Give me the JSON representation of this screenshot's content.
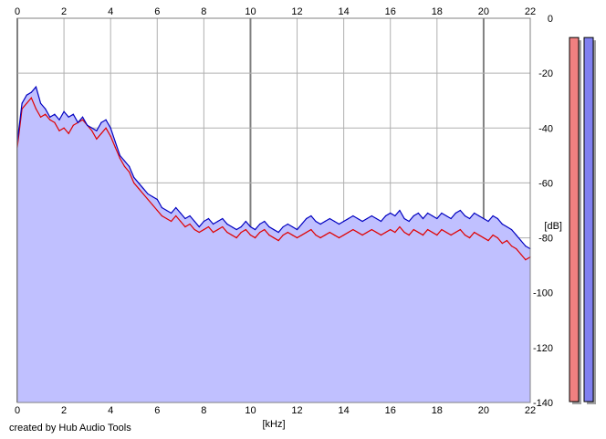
{
  "footer": {
    "credit": "created by Hub Audio Tools"
  },
  "chart_data": {
    "type": "line",
    "title": "",
    "xlabel": "[kHz]",
    "ylabel": "[dB]",
    "xlim": [
      0,
      22
    ],
    "ylim": [
      -140,
      0
    ],
    "x_ticks": [
      0,
      2,
      4,
      6,
      8,
      10,
      12,
      14,
      16,
      18,
      20,
      22
    ],
    "y_ticks": [
      0,
      -20,
      -40,
      -60,
      -80,
      -100,
      -120,
      -140
    ],
    "grid": true,
    "legend": "none",
    "series": [
      {
        "color": "#e00000",
        "x": [
          0.0,
          0.2,
          0.4,
          0.6,
          0.8,
          1.0,
          1.2,
          1.4,
          1.6,
          1.8,
          2.0,
          2.2,
          2.4,
          2.6,
          2.8,
          3.0,
          3.2,
          3.4,
          3.6,
          3.8,
          4.0,
          4.2,
          4.4,
          4.6,
          4.8,
          5.0,
          5.2,
          5.4,
          5.6,
          5.8,
          6.0,
          6.2,
          6.4,
          6.6,
          6.8,
          7.0,
          7.2,
          7.4,
          7.6,
          7.8,
          8.0,
          8.2,
          8.4,
          8.6,
          8.8,
          9.0,
          9.2,
          9.4,
          9.6,
          9.8,
          10.0,
          10.2,
          10.4,
          10.6,
          10.8,
          11.0,
          11.2,
          11.4,
          11.6,
          11.8,
          12.0,
          12.2,
          12.4,
          12.6,
          12.8,
          13.0,
          13.2,
          13.4,
          13.6,
          13.8,
          14.0,
          14.2,
          14.4,
          14.6,
          14.8,
          15.0,
          15.2,
          15.4,
          15.6,
          15.8,
          16.0,
          16.2,
          16.4,
          16.6,
          16.8,
          17.0,
          17.2,
          17.4,
          17.6,
          17.8,
          18.0,
          18.2,
          18.4,
          18.6,
          18.8,
          19.0,
          19.2,
          19.4,
          19.6,
          19.8,
          20.0,
          20.2,
          20.4,
          20.6,
          20.8,
          21.0,
          21.2,
          21.4,
          21.6,
          21.8,
          22.0
        ],
        "values": [
          -47,
          -33,
          -31,
          -29,
          -33,
          -36,
          -35,
          -37,
          -38,
          -41,
          -40,
          -42,
          -39,
          -38,
          -37,
          -39,
          -41,
          -44,
          -42,
          -40,
          -43,
          -47,
          -51,
          -54,
          -56,
          -60,
          -62,
          -64,
          -66,
          -68,
          -70,
          -72,
          -73,
          -74,
          -72,
          -74,
          -76,
          -75,
          -77,
          -78,
          -77,
          -76,
          -78,
          -77,
          -76,
          -78,
          -79,
          -80,
          -78,
          -77,
          -79,
          -80,
          -78,
          -77,
          -79,
          -80,
          -81,
          -79,
          -78,
          -79,
          -80,
          -79,
          -78,
          -77,
          -79,
          -80,
          -79,
          -78,
          -79,
          -80,
          -79,
          -78,
          -77,
          -78,
          -79,
          -78,
          -77,
          -78,
          -79,
          -78,
          -77,
          -78,
          -76,
          -78,
          -79,
          -77,
          -78,
          -79,
          -77,
          -78,
          -79,
          -77,
          -78,
          -79,
          -78,
          -77,
          -79,
          -80,
          -78,
          -79,
          -80,
          -81,
          -79,
          -80,
          -82,
          -81,
          -83,
          -84,
          -86,
          -88,
          -87
        ]
      },
      {
        "color": "#0000c0",
        "x": [
          0.0,
          0.2,
          0.4,
          0.6,
          0.8,
          1.0,
          1.2,
          1.4,
          1.6,
          1.8,
          2.0,
          2.2,
          2.4,
          2.6,
          2.8,
          3.0,
          3.2,
          3.4,
          3.6,
          3.8,
          4.0,
          4.2,
          4.4,
          4.6,
          4.8,
          5.0,
          5.2,
          5.4,
          5.6,
          5.8,
          6.0,
          6.2,
          6.4,
          6.6,
          6.8,
          7.0,
          7.2,
          7.4,
          7.6,
          7.8,
          8.0,
          8.2,
          8.4,
          8.6,
          8.8,
          9.0,
          9.2,
          9.4,
          9.6,
          9.8,
          10.0,
          10.2,
          10.4,
          10.6,
          10.8,
          11.0,
          11.2,
          11.4,
          11.6,
          11.8,
          12.0,
          12.2,
          12.4,
          12.6,
          12.8,
          13.0,
          13.2,
          13.4,
          13.6,
          13.8,
          14.0,
          14.2,
          14.4,
          14.6,
          14.8,
          15.0,
          15.2,
          15.4,
          15.6,
          15.8,
          16.0,
          16.2,
          16.4,
          16.6,
          16.8,
          17.0,
          17.2,
          17.4,
          17.6,
          17.8,
          18.0,
          18.2,
          18.4,
          18.6,
          18.8,
          19.0,
          19.2,
          19.4,
          19.6,
          19.8,
          20.0,
          20.2,
          20.4,
          20.6,
          20.8,
          21.0,
          21.2,
          21.4,
          21.6,
          21.8,
          22.0
        ],
        "values": [
          -45,
          -31,
          -28,
          -27,
          -25,
          -31,
          -33,
          -36,
          -35,
          -37,
          -34,
          -36,
          -35,
          -38,
          -36,
          -39,
          -40,
          -41,
          -38,
          -37,
          -40,
          -45,
          -50,
          -52,
          -54,
          -58,
          -60,
          -62,
          -64,
          -65,
          -66,
          -69,
          -70,
          -71,
          -69,
          -71,
          -73,
          -72,
          -74,
          -76,
          -74,
          -73,
          -75,
          -74,
          -73,
          -75,
          -76,
          -77,
          -76,
          -74,
          -76,
          -77,
          -75,
          -74,
          -76,
          -77,
          -78,
          -76,
          -75,
          -76,
          -77,
          -75,
          -73,
          -72,
          -74,
          -75,
          -74,
          -73,
          -74,
          -75,
          -74,
          -73,
          -72,
          -73,
          -74,
          -73,
          -72,
          -73,
          -74,
          -72,
          -71,
          -72,
          -70,
          -73,
          -74,
          -72,
          -71,
          -73,
          -71,
          -72,
          -73,
          -71,
          -72,
          -73,
          -71,
          -70,
          -72,
          -73,
          -71,
          -72,
          -73,
          -74,
          -72,
          -73,
          -75,
          -76,
          -77,
          -79,
          -81,
          -83,
          -84
        ]
      }
    ],
    "fill_color": "#c0c0ff",
    "level_meters": [
      {
        "channel": "left",
        "color": "#f08080",
        "level": 0.98
      },
      {
        "channel": "right",
        "color": "#8080f0",
        "level": 0.98
      }
    ]
  }
}
